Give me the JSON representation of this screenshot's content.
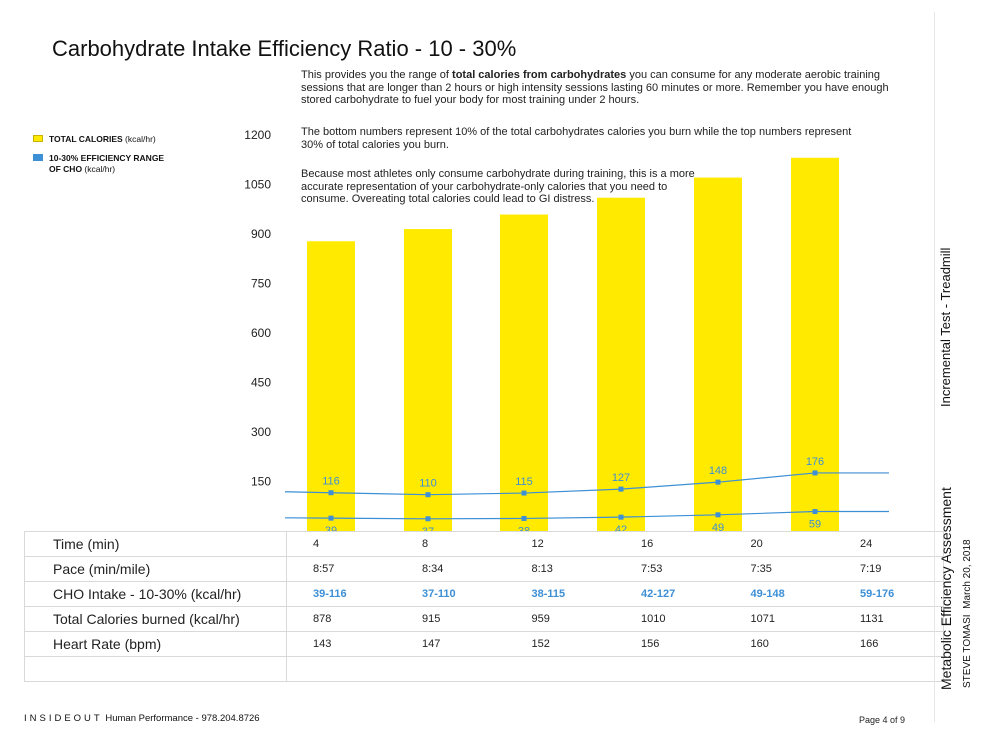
{
  "title": "Carbohydrate Intake Efficiency Ratio - 10 - 30%",
  "intro": {
    "p1_pre": "This provides you the range of ",
    "p1_bold": "total calories from carbohydrates",
    "p1_post": " you can consume for any moderate aerobic training sessions that are longer than 2 hours or high intensity sessions lasting 60 minutes or more. Remember you have enough stored carbohydrate to fuel your body for most training under 2 hours.",
    "p2": "The bottom numbers represent 10% of the total carbohydrates calories you burn while the top numbers represent 30% of total calories you burn.",
    "p3": "Because most athletes only consume carbohydrate during training, this is a more accurate representation of your carbohydrate-only calories that you need to consume. Overeating total calories could lead to GI distress."
  },
  "legend": {
    "item1_bold": "TOTAL CALORIES",
    "item1_unit": " (kcal/hr)",
    "item2_line1": "10-30% EFFICIENCY RANGE",
    "item2_bold2": "OF CHO",
    "item2_unit": " (kcal/hr)"
  },
  "colors": {
    "bar": "#ffea00",
    "line": "#3d8fd6",
    "accent_text": "#3d8fd6"
  },
  "chart_data": {
    "type": "bar",
    "categories": [
      "4",
      "8",
      "12",
      "16",
      "20",
      "24"
    ],
    "y_ticks": [
      "150",
      "300",
      "450",
      "600",
      "750",
      "900",
      "1050",
      "1200"
    ],
    "ylim": [
      0,
      1200
    ],
    "grid": false,
    "legend_position": "top-left",
    "series": [
      {
        "name": "TOTAL CALORIES (kcal/hr)",
        "kind": "bar",
        "values": [
          878,
          915,
          959,
          1010,
          1071,
          1131
        ]
      },
      {
        "name": "10-30% EFFICIENCY RANGE OF CHO (kcal/hr)",
        "kind": "line",
        "upper": [
          116,
          110,
          115,
          127,
          148,
          176
        ],
        "lower": [
          39,
          37,
          38,
          42,
          49,
          59
        ]
      }
    ]
  },
  "table": {
    "rows": [
      {
        "label": "Time (min)",
        "values": [
          "4",
          "8",
          "12",
          "16",
          "20",
          "24"
        ],
        "key": "time"
      },
      {
        "label": "Pace (min/mile)",
        "values": [
          "8:57",
          "8:34",
          "8:13",
          "7:53",
          "7:35",
          "7:19"
        ],
        "key": "pace"
      },
      {
        "label": "CHO Intake - 10-30% (kcal/hr)",
        "values": [
          "39-116",
          "37-110",
          "38-115",
          "42-127",
          "49-148",
          "59-176"
        ],
        "key": "cho"
      },
      {
        "label": "Total Calories burned (kcal/hr)",
        "values": [
          "878",
          "915",
          "959",
          "1010",
          "1071",
          "1131"
        ],
        "key": "cal"
      },
      {
        "label": "Heart Rate (bpm)",
        "values": [
          "143",
          "147",
          "152",
          "156",
          "160",
          "166"
        ],
        "key": "hr"
      },
      {
        "label": "",
        "values": [
          "",
          "",
          "",
          "",
          "",
          ""
        ],
        "key": "blank"
      }
    ]
  },
  "footer": {
    "brand": "INSIDEOUT",
    "company": " Human Performance - 978.204.8726",
    "page": "Page 4 of 9"
  },
  "side": {
    "test": "Incremental Test - Treadmill",
    "report": "Metabolic Efficiency Assessment",
    "athlete": "STEVE TOMASI",
    "date": "March 20, 2018"
  }
}
